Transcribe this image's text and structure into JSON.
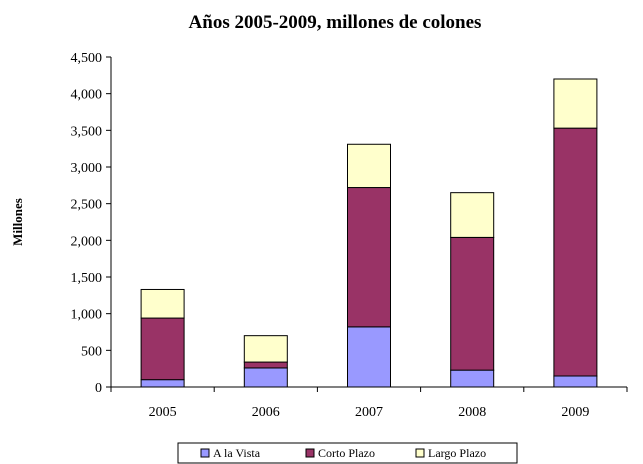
{
  "chart_data": {
    "type": "bar",
    "stacked": true,
    "title": "Años 2005-2009, millones de colones",
    "xlabel": "",
    "ylabel": "Millones",
    "categories": [
      "2005",
      "2006",
      "2007",
      "2008",
      "2009"
    ],
    "series": [
      {
        "name": "A la Vista",
        "color": "#9999ff",
        "values": [
          100,
          260,
          820,
          230,
          150
        ]
      },
      {
        "name": "Corto Plazo",
        "color": "#993366",
        "values": [
          840,
          80,
          1900,
          1810,
          3380
        ]
      },
      {
        "name": "Largo Plazo",
        "color": "#ffffcc",
        "values": [
          390,
          360,
          590,
          610,
          670
        ]
      }
    ],
    "ylim": [
      0,
      4500
    ],
    "yticks": [
      0,
      500,
      1000,
      1500,
      2000,
      2500,
      3000,
      3500,
      4000,
      4500
    ],
    "ytick_labels": [
      "0",
      "500",
      "1,000",
      "1,500",
      "2,000",
      "2,500",
      "3,000",
      "3,500",
      "4,000",
      "4,500"
    ],
    "grid": false,
    "legend_position": "bottom"
  }
}
